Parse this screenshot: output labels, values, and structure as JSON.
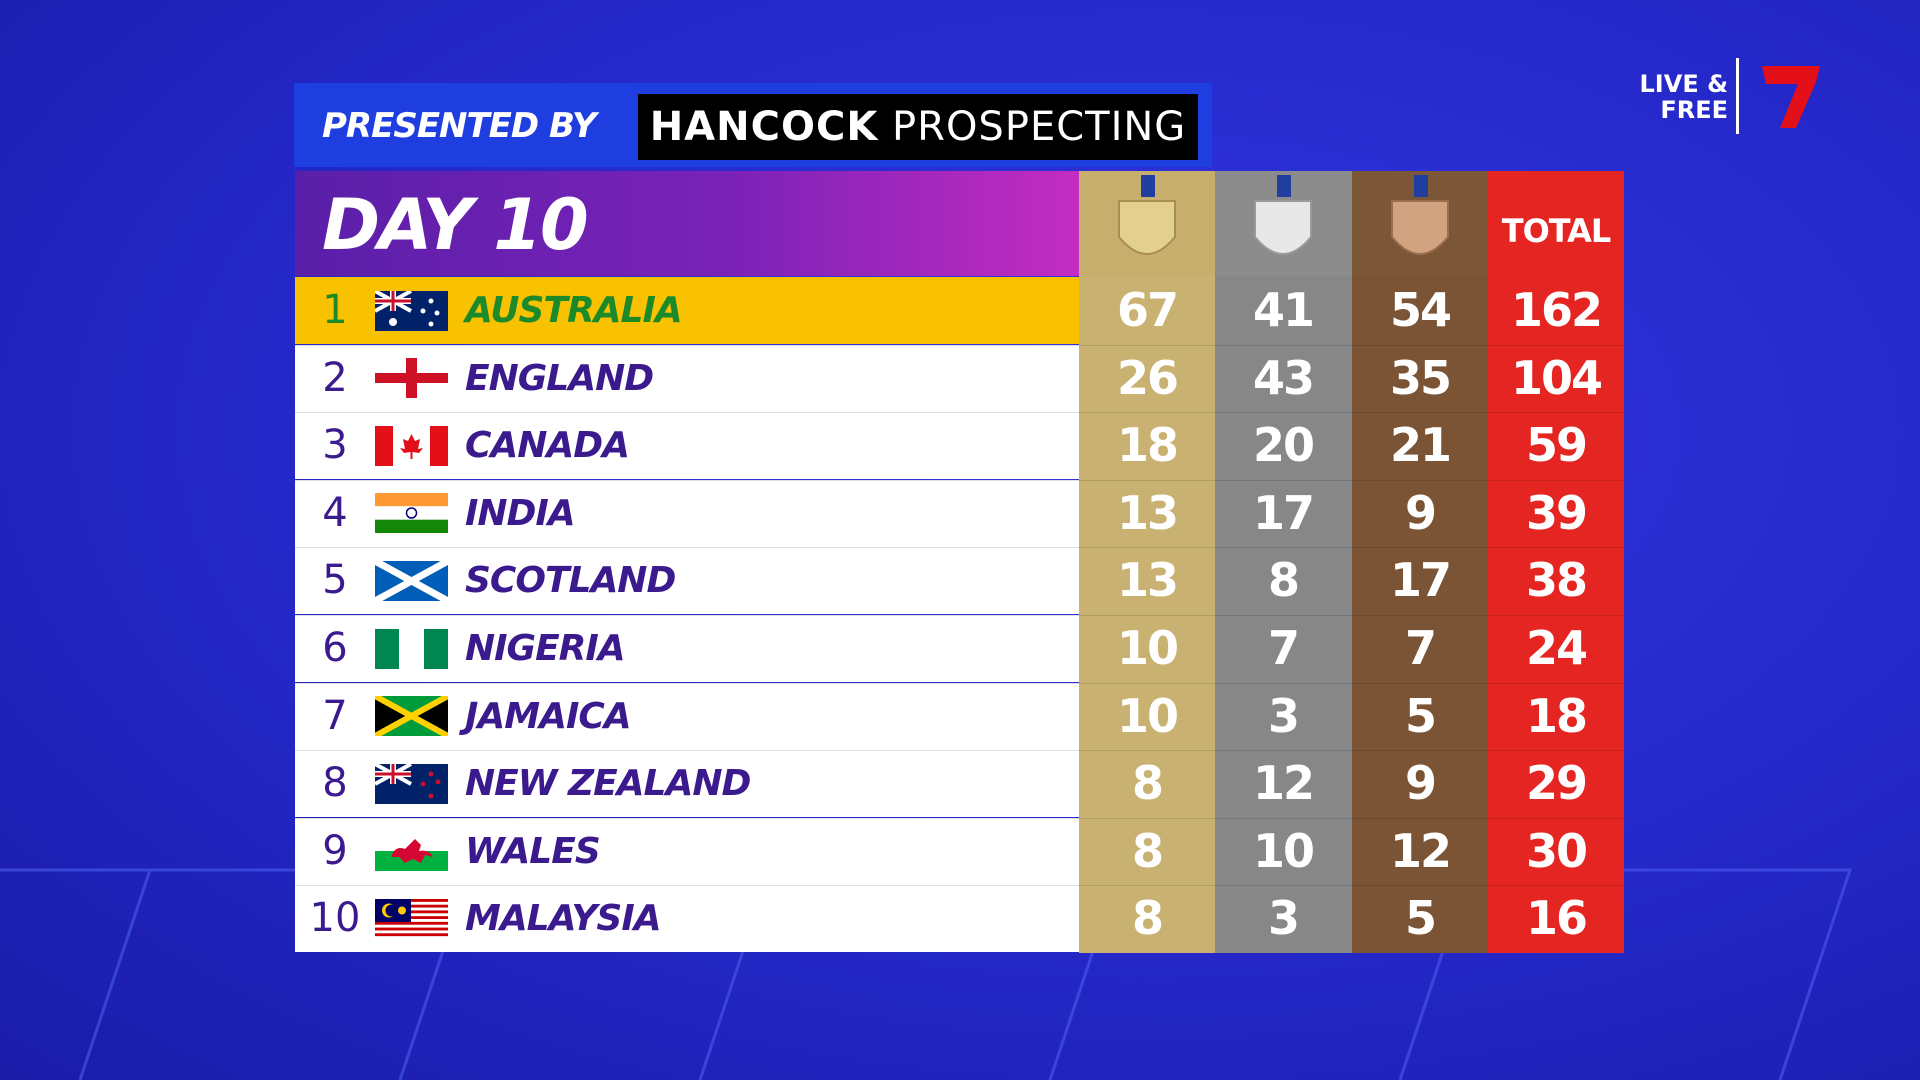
{
  "sponsor": {
    "label": "PRESENTED BY",
    "brand": "HANCOCK",
    "brand_suffix": "PROSPECTING"
  },
  "broadcaster": {
    "line1": "LIVE &",
    "line2": "FREE"
  },
  "table": {
    "title": "DAY 10",
    "total_header": "TOTAL",
    "rows": [
      {
        "rank": "1",
        "country": "AUSTRALIA",
        "gold": "67",
        "silver": "41",
        "bronze": "54",
        "total": "162"
      },
      {
        "rank": "2",
        "country": "ENGLAND",
        "gold": "26",
        "silver": "43",
        "bronze": "35",
        "total": "104"
      },
      {
        "rank": "3",
        "country": "CANADA",
        "gold": "18",
        "silver": "20",
        "bronze": "21",
        "total": "59"
      },
      {
        "rank": "4",
        "country": "INDIA",
        "gold": "13",
        "silver": "17",
        "bronze": "9",
        "total": "39"
      },
      {
        "rank": "5",
        "country": "SCOTLAND",
        "gold": "13",
        "silver": "8",
        "bronze": "17",
        "total": "38"
      },
      {
        "rank": "6",
        "country": "NIGERIA",
        "gold": "10",
        "silver": "7",
        "bronze": "7",
        "total": "24"
      },
      {
        "rank": "7",
        "country": "JAMAICA",
        "gold": "10",
        "silver": "3",
        "bronze": "5",
        "total": "18"
      },
      {
        "rank": "8",
        "country": "NEW ZEALAND",
        "gold": "8",
        "silver": "12",
        "bronze": "9",
        "total": "29"
      },
      {
        "rank": "9",
        "country": "WALES",
        "gold": "8",
        "silver": "10",
        "bronze": "12",
        "total": "30"
      },
      {
        "rank": "10",
        "country": "MALAYSIA",
        "gold": "8",
        "silver": "3",
        "bronze": "5",
        "total": "16"
      }
    ]
  }
}
